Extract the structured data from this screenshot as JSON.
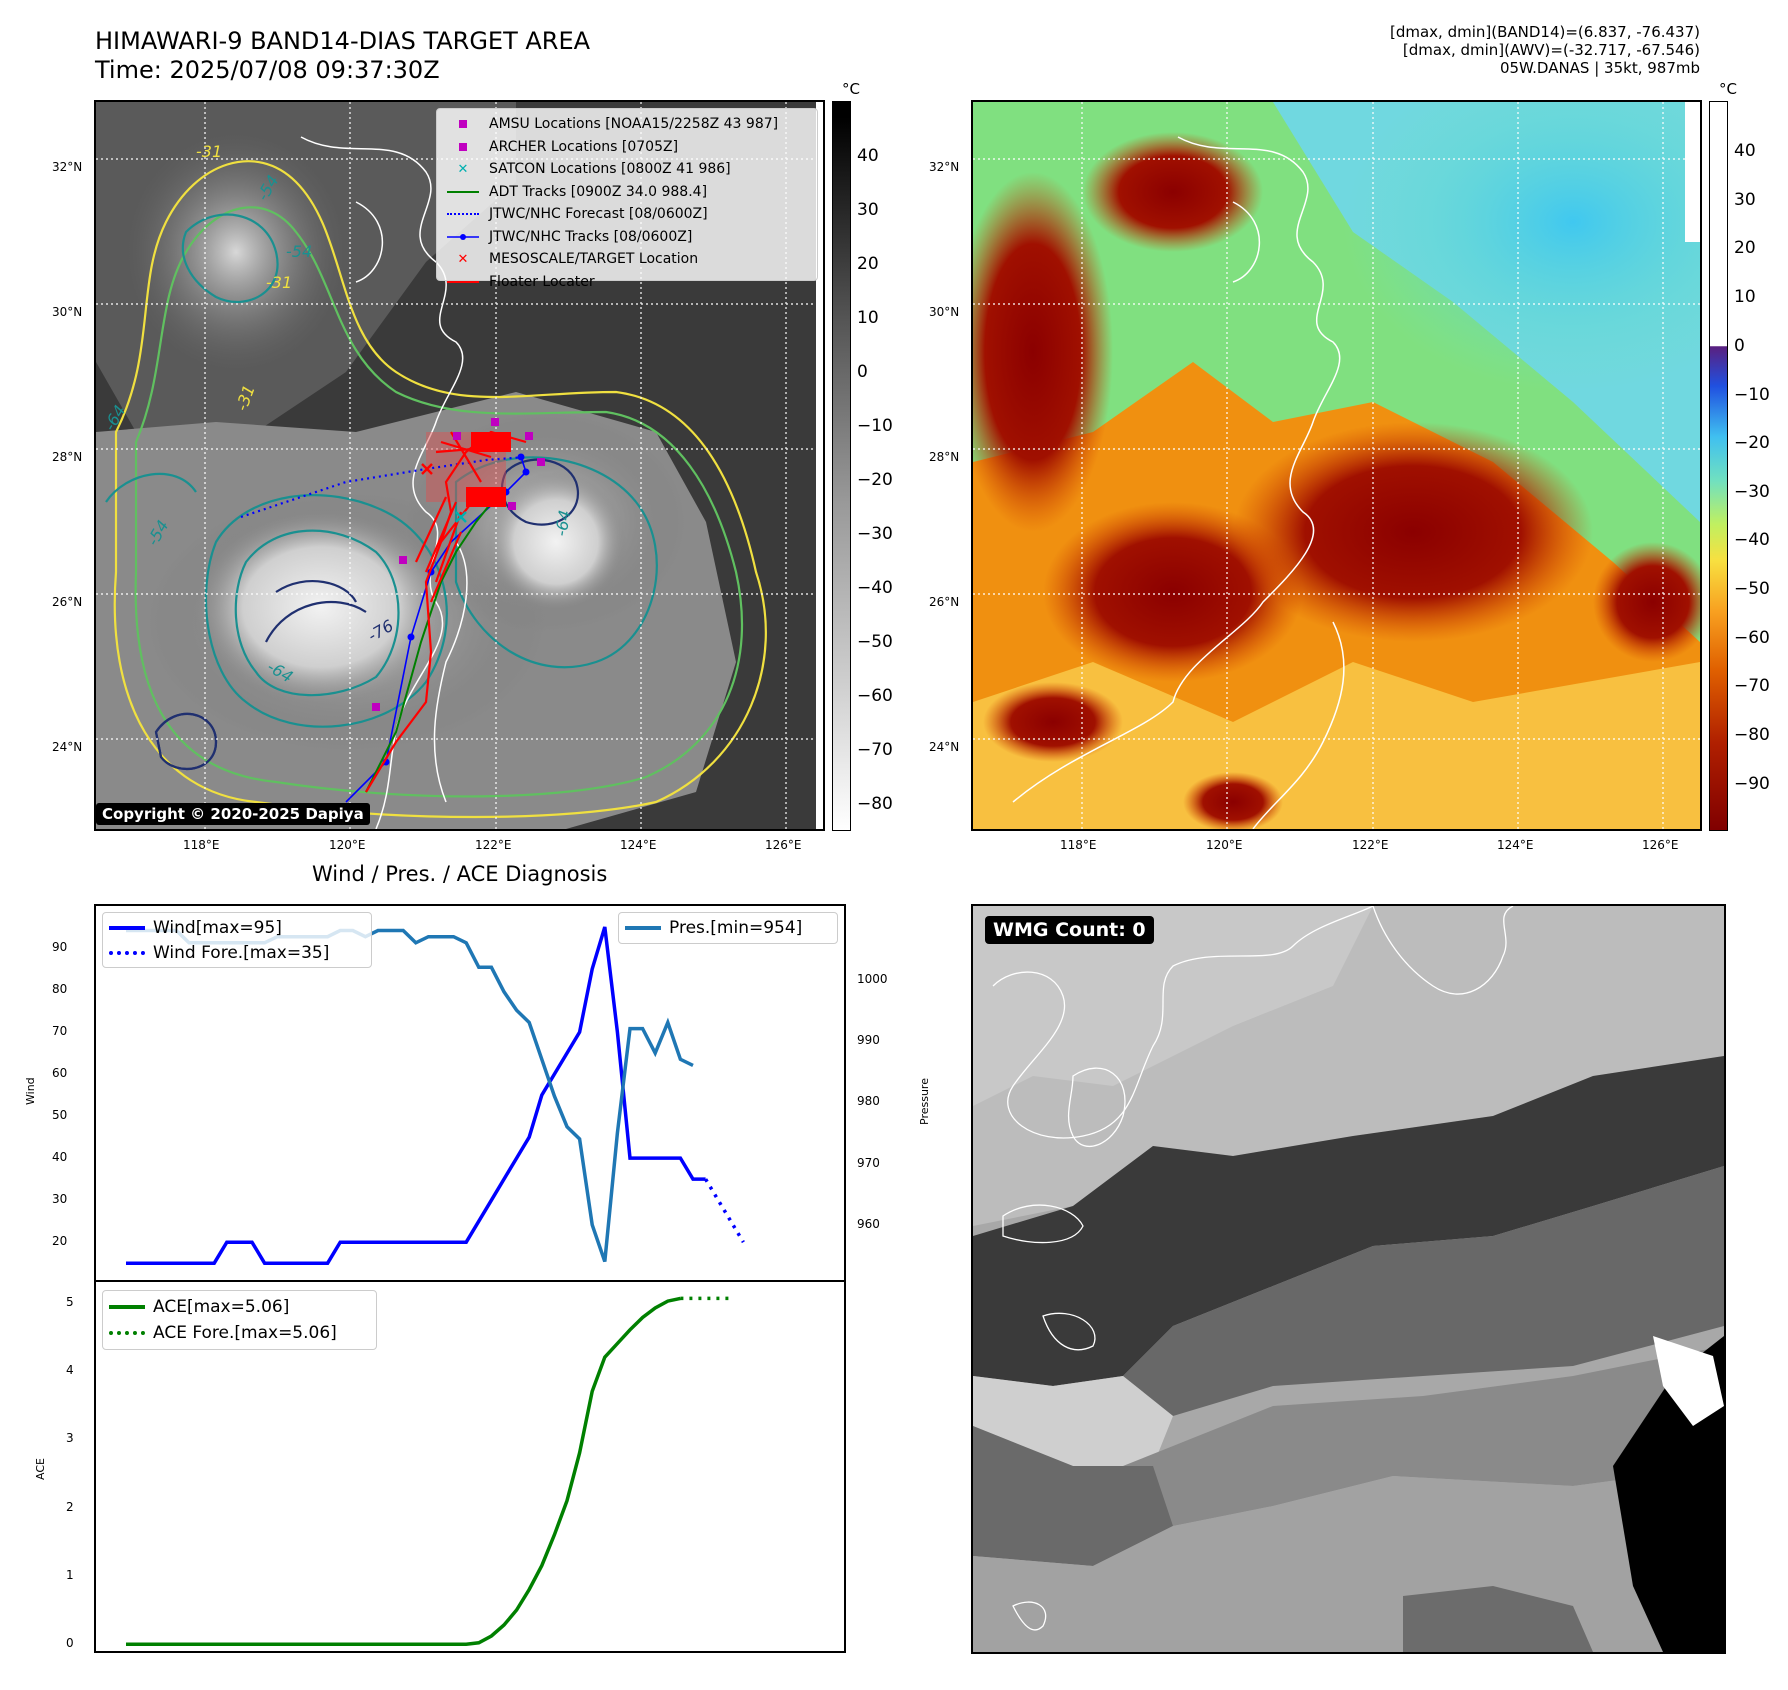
{
  "header": {
    "title_line1": "HIMAWARI-9 BAND14-DIAS TARGET AREA",
    "title_line2": "Time: 2025/07/08 09:37:30Z",
    "info_line1": "[dmax, dmin](BAND14)=(6.837, -76.437)",
    "info_line2": "[dmax, dmin](AWV)=(-32.717, -67.546)",
    "info_line3": "05W.DANAS | 35kt, 987mb"
  },
  "map": {
    "lat_labels": [
      "32°N",
      "30°N",
      "28°N",
      "26°N",
      "24°N"
    ],
    "lon_labels": [
      "118°E",
      "120°E",
      "122°E",
      "124°E",
      "126°E"
    ],
    "contour_labels": [
      "-31",
      "-54",
      "-54",
      "-31",
      "-54",
      "-64",
      "-31",
      "-76",
      "-64",
      "-64"
    ],
    "copyright": "Copyright © 2020-2025 Dapiya",
    "legend": [
      {
        "label": "AMSU Locations [NOAA15/2258Z 43 987]",
        "symbol": "square",
        "color": "#c000c0"
      },
      {
        "label": "ARCHER Locations [0705Z]",
        "symbol": "square",
        "color": "#c000c0"
      },
      {
        "label": "SATCON Locations [0800Z 41 986]",
        "symbol": "x",
        "color": "#00b0b0"
      },
      {
        "label": "ADT Tracks [0900Z 34.0 988.4]",
        "symbol": "line",
        "color": "#008000"
      },
      {
        "label": "JTWC/NHC Forecast [08/0600Z]",
        "symbol": "dotted",
        "color": "#0000ff"
      },
      {
        "label": "JTWC/NHC Tracks [08/0600Z]",
        "symbol": "line-dot",
        "color": "#0000ff"
      },
      {
        "label": "MESOSCALE/TARGET Location",
        "symbol": "x",
        "color": "#ff0000"
      },
      {
        "label": "Floater Locater",
        "symbol": "line",
        "color": "#ff0000"
      }
    ]
  },
  "colorbar_left": {
    "unit": "°C",
    "ticks": [
      "40",
      "30",
      "20",
      "10",
      "0",
      "−10",
      "−20",
      "−30",
      "−40",
      "−50",
      "−60",
      "−70",
      "−80"
    ]
  },
  "colorbar_right": {
    "unit": "°C",
    "ticks": [
      "40",
      "30",
      "20",
      "10",
      "0",
      "−10",
      "−20",
      "−30",
      "−40",
      "−50",
      "−60",
      "−70",
      "−80",
      "−90"
    ]
  },
  "diagnosis": {
    "title": "Wind / Pres. / ACE Diagnosis",
    "wind_ylabel": "Wind",
    "pres_ylabel": "Pressure",
    "ace_ylabel": "ACE",
    "wind_ticks": [
      "90",
      "80",
      "70",
      "60",
      "50",
      "40",
      "30",
      "20"
    ],
    "pres_ticks": [
      "1000",
      "990",
      "980",
      "970",
      "960"
    ],
    "ace_ticks": [
      "5",
      "4",
      "3",
      "2",
      "1",
      "0"
    ],
    "legend_wind": "Wind[max=95]",
    "legend_wind_fore": "Wind Fore.[max=35]",
    "legend_pres": "Pres.[min=954]",
    "legend_ace": "ACE[max=5.06]",
    "legend_ace_fore": "ACE Fore.[max=5.06]"
  },
  "wmg": {
    "label": "WMG Count: 0"
  },
  "colors": {
    "wind": "#0000ff",
    "pressure": "#1f77b4",
    "ace": "#008000",
    "contour_yellow": "#f0e040",
    "contour_green": "#60c060",
    "contour_teal": "#1a9090",
    "contour_navy": "#203070"
  },
  "chart_data": [
    {
      "type": "line",
      "title": "Wind / Pres. / ACE Diagnosis",
      "ylabel": "Wind",
      "ylim": [
        11,
        100
      ],
      "series": [
        {
          "name": "Wind[max=95]",
          "values": [
            15,
            15,
            15,
            15,
            15,
            15,
            15,
            15,
            20,
            20,
            20,
            15,
            15,
            15,
            15,
            15,
            15,
            20,
            20,
            20,
            20,
            20,
            20,
            20,
            20,
            20,
            20,
            20,
            25,
            30,
            35,
            40,
            45,
            55,
            60,
            65,
            70,
            85,
            95,
            70,
            40,
            40,
            40,
            40,
            40,
            35,
            35
          ]
        },
        {
          "name": "Wind Fore.[max=35]",
          "values": [
            35,
            30,
            25,
            20
          ],
          "start_index": 46
        }
      ]
    },
    {
      "type": "line",
      "ylabel": "Pressure",
      "ylim": [
        951,
        1012
      ],
      "series": [
        {
          "name": "Pres.[min=954]",
          "values": [
            1008,
            1008,
            1008,
            1008,
            1008,
            1006,
            1006,
            1006,
            1006,
            1006,
            1006,
            1006,
            1007,
            1007,
            1007,
            1007,
            1007,
            1008,
            1008,
            1007,
            1008,
            1008,
            1008,
            1006,
            1007,
            1007,
            1007,
            1006,
            1002,
            1002,
            998,
            995,
            993,
            987,
            981,
            976,
            974,
            960,
            954,
            975,
            992,
            992,
            988,
            993,
            987,
            986
          ]
        }
      ]
    },
    {
      "type": "line",
      "ylabel": "ACE",
      "ylim": [
        -0.1,
        5.3
      ],
      "series": [
        {
          "name": "ACE[max=5.06]",
          "values": [
            0,
            0,
            0,
            0,
            0,
            0,
            0,
            0,
            0,
            0,
            0,
            0,
            0,
            0,
            0,
            0,
            0,
            0,
            0,
            0,
            0,
            0,
            0,
            0,
            0,
            0,
            0,
            0,
            0.02,
            0.12,
            0.28,
            0.5,
            0.8,
            1.15,
            1.6,
            2.1,
            2.8,
            3.7,
            4.2,
            4.4,
            4.6,
            4.78,
            4.92,
            5.02,
            5.06
          ]
        },
        {
          "name": "ACE Fore.[max=5.06]",
          "values": [
            5.06,
            5.06,
            5.06,
            5.06,
            5.06
          ],
          "start_index": 44
        }
      ]
    }
  ]
}
